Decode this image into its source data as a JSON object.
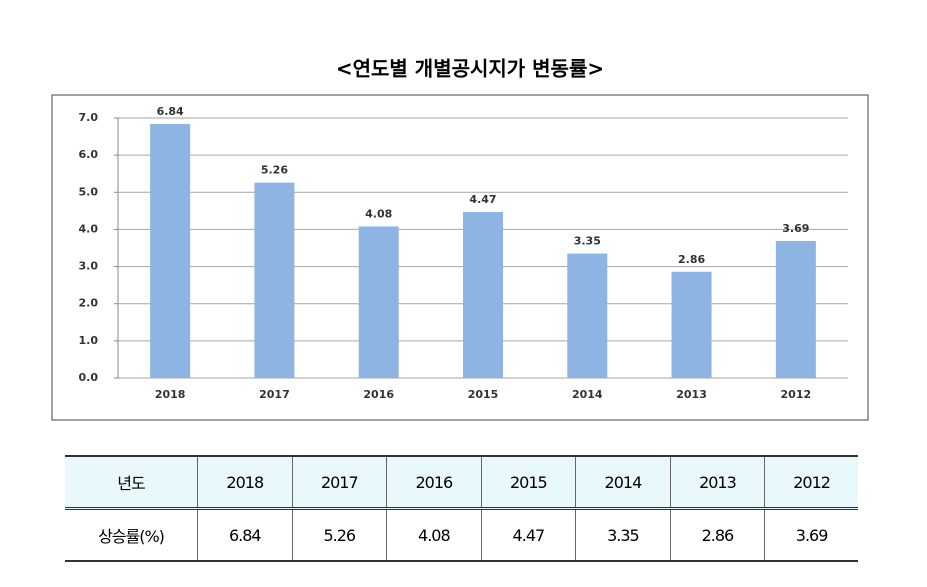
{
  "chart_data": {
    "type": "bar",
    "title": "<연도별 개별공시지가 변동률>",
    "categories": [
      "2018",
      "2017",
      "2016",
      "2015",
      "2014",
      "2013",
      "2012"
    ],
    "values": [
      6.84,
      5.26,
      4.08,
      4.47,
      3.35,
      2.86,
      3.69
    ],
    "color": "#8db4e2",
    "ylim": [
      0,
      7
    ],
    "yticks": [
      {
        "value": 0,
        "label": "0.0"
      },
      {
        "value": 1,
        "label": "1.0"
      },
      {
        "value": 2,
        "label": "2.0"
      },
      {
        "value": 3,
        "label": "3.0"
      },
      {
        "value": 4,
        "label": "4.0"
      },
      {
        "value": 5,
        "label": "5.0"
      },
      {
        "value": 6,
        "label": "6.0"
      },
      {
        "value": 7,
        "label": "7.0"
      }
    ],
    "grid": true
  },
  "table": {
    "header": [
      "년도",
      "2018",
      "2017",
      "2016",
      "2015",
      "2014",
      "2013",
      "2012"
    ],
    "rows": [
      [
        "상승률(%)",
        "6.84",
        "5.26",
        "4.08",
        "4.47",
        "3.35",
        "2.86",
        "3.69"
      ]
    ]
  }
}
